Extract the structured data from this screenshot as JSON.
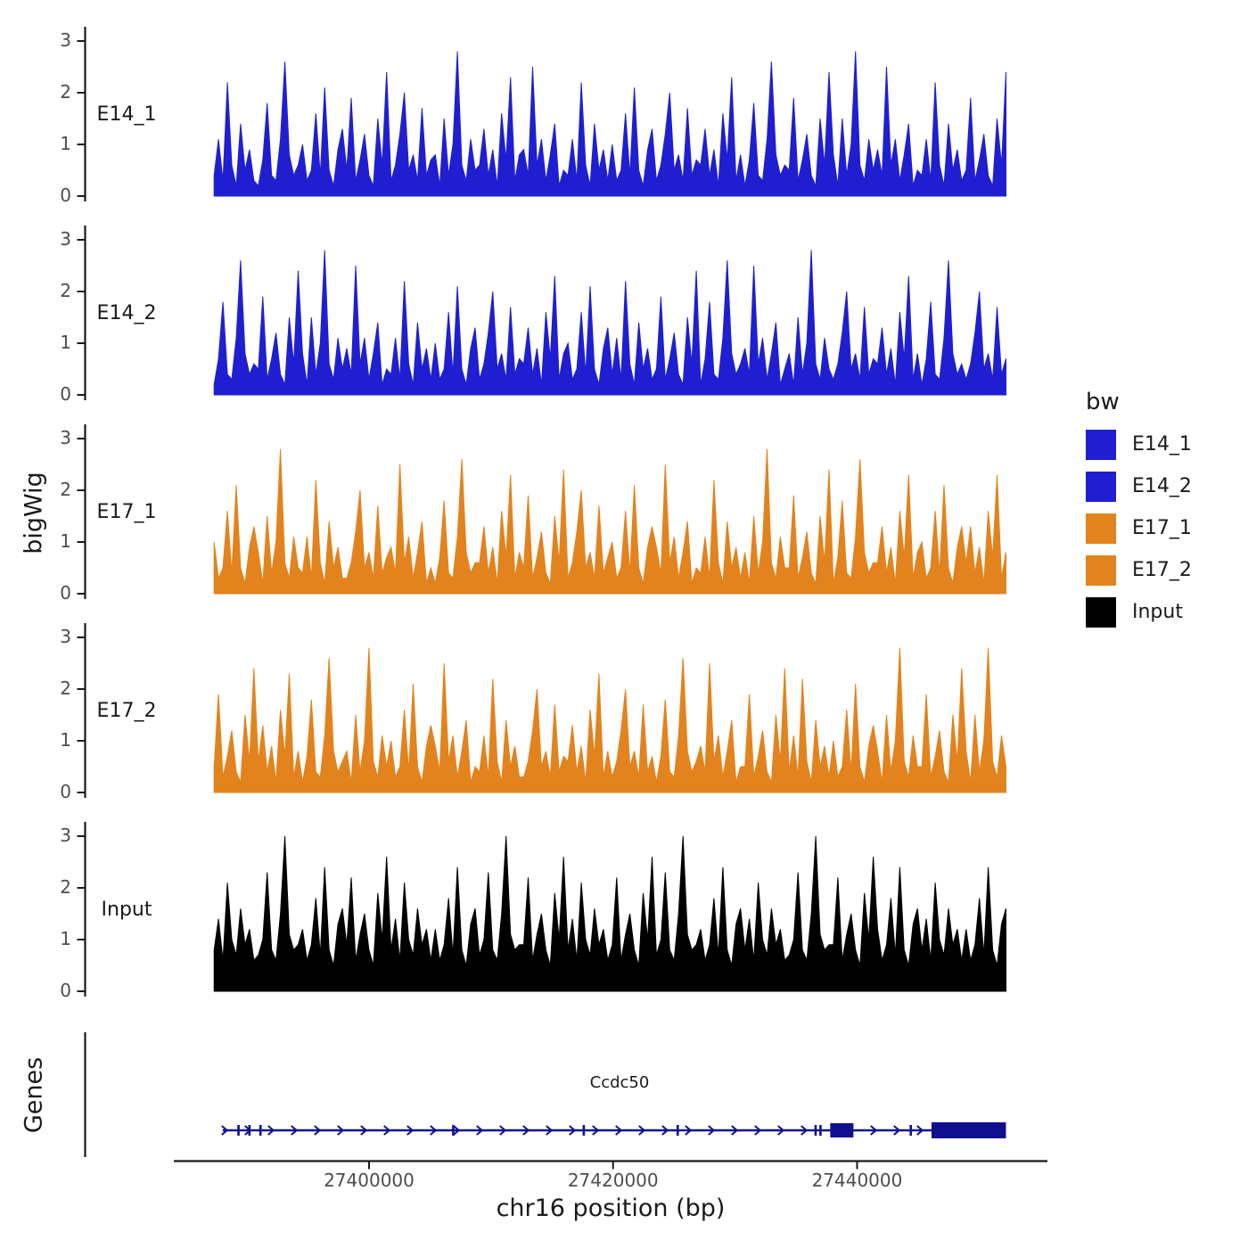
{
  "chart_data": {
    "type": "area",
    "title": "",
    "x_axis": {
      "label": "chr16 position (bp)",
      "domain": [
        27384000,
        27455600
      ],
      "ticks": [
        27400000,
        27420000,
        27440000
      ],
      "tick_labels": [
        "27400000",
        "27420000",
        "27440000"
      ]
    },
    "y_axis": {
      "label": "bigWig",
      "ticks": [
        0,
        1,
        2,
        3
      ],
      "range": [
        0,
        3.3
      ]
    },
    "data_start": 27387300,
    "data_end": 27452200,
    "tracks": [
      {
        "name": "E14_1",
        "color": "#1F1FD1",
        "values": [
          0.4,
          1.1,
          0.3,
          2.2,
          0.6,
          0.2,
          1.4,
          0.5,
          0.9,
          0.3,
          0.2,
          0.7,
          1.8,
          0.4,
          0.3,
          1.1,
          2.6,
          0.8,
          0.4,
          0.6,
          1.0,
          0.3,
          0.5,
          1.6,
          0.4,
          2.1,
          0.5,
          0.2,
          0.9,
          1.3,
          0.5,
          1.9,
          0.3,
          0.7,
          1.2,
          0.4,
          0.2,
          1.5,
          0.6,
          2.4,
          0.3,
          0.6,
          1.2,
          2.0,
          0.5,
          0.8,
          0.3,
          1.7,
          0.4,
          0.7,
          0.8,
          0.2,
          1.5,
          0.4,
          1.0,
          2.8,
          0.6,
          0.3,
          1.1,
          0.5,
          0.6,
          1.3,
          0.4,
          0.9,
          0.2,
          1.6,
          0.7,
          2.3,
          0.3,
          0.8,
          0.9,
          0.4,
          2.5,
          0.6,
          1.1,
          0.3,
          0.8,
          1.4,
          0.2,
          0.5,
          0.4,
          1.1,
          0.3,
          2.2,
          0.6,
          0.2,
          1.4,
          0.5,
          0.9,
          0.3,
          1.0,
          0.3,
          0.5,
          1.6,
          0.4,
          2.1,
          0.5,
          0.2,
          0.9,
          1.3,
          0.3,
          0.6,
          1.2,
          2.0,
          0.5,
          0.8,
          0.3,
          1.7,
          0.4,
          0.7,
          0.6,
          1.3,
          0.4,
          0.9,
          0.2,
          1.6,
          0.7,
          2.3,
          0.3,
          0.8,
          0.2,
          0.7,
          1.8,
          0.4,
          0.3,
          1.1,
          2.6,
          0.8,
          0.4,
          0.6,
          0.5,
          1.9,
          0.3,
          0.7,
          1.2,
          0.4,
          0.2,
          1.5,
          0.6,
          2.4,
          0.8,
          0.2,
          1.5,
          0.4,
          1.0,
          2.8,
          0.6,
          0.3,
          1.1,
          0.5,
          0.9,
          0.4,
          2.5,
          0.6,
          1.1,
          0.3,
          0.8,
          1.4,
          0.2,
          0.5,
          0.4,
          1.1,
          0.3,
          2.2,
          0.6,
          0.2,
          1.4,
          0.5,
          0.9,
          0.3,
          0.5,
          1.9,
          0.3,
          0.7,
          1.2,
          0.4,
          0.2,
          1.5,
          0.6,
          2.4
        ]
      },
      {
        "name": "E14_2",
        "color": "#1F1FD1",
        "values": [
          0.2,
          0.7,
          1.8,
          0.4,
          0.3,
          1.1,
          2.6,
          0.8,
          0.4,
          0.6,
          0.5,
          1.9,
          0.3,
          0.7,
          1.2,
          0.4,
          0.2,
          1.5,
          0.6,
          2.4,
          0.8,
          0.2,
          1.5,
          0.4,
          1.0,
          2.8,
          0.6,
          0.3,
          1.1,
          0.5,
          0.9,
          0.4,
          2.5,
          0.6,
          1.1,
          0.3,
          0.8,
          1.4,
          0.2,
          0.5,
          0.4,
          1.1,
          0.3,
          2.2,
          0.6,
          0.2,
          1.4,
          0.5,
          0.9,
          0.3,
          1.0,
          0.3,
          0.5,
          1.6,
          0.4,
          2.1,
          0.5,
          0.2,
          0.9,
          1.3,
          0.3,
          0.6,
          1.2,
          2.0,
          0.5,
          0.8,
          0.3,
          1.7,
          0.4,
          0.7,
          0.6,
          1.3,
          0.4,
          0.9,
          0.2,
          1.6,
          0.7,
          2.3,
          0.3,
          0.8,
          1.0,
          0.3,
          0.5,
          1.6,
          0.4,
          2.1,
          0.5,
          0.2,
          0.9,
          1.3,
          0.4,
          1.1,
          0.3,
          2.2,
          0.6,
          0.2,
          1.4,
          0.5,
          0.9,
          0.3,
          0.5,
          1.9,
          0.3,
          0.7,
          1.2,
          0.4,
          0.2,
          1.5,
          0.6,
          2.4,
          0.2,
          0.7,
          1.8,
          0.4,
          0.3,
          1.1,
          2.6,
          0.8,
          0.4,
          0.6,
          0.9,
          0.4,
          2.5,
          0.6,
          1.1,
          0.3,
          0.8,
          1.4,
          0.2,
          0.5,
          0.8,
          0.2,
          1.5,
          0.4,
          1.0,
          2.8,
          0.6,
          0.3,
          1.1,
          0.5,
          0.3,
          0.6,
          1.2,
          2.0,
          0.5,
          0.8,
          0.3,
          1.7,
          0.4,
          0.7,
          0.6,
          1.3,
          0.4,
          0.9,
          0.2,
          1.6,
          0.7,
          2.3,
          0.3,
          0.8,
          0.2,
          0.7,
          1.8,
          0.4,
          0.3,
          1.1,
          2.6,
          0.8,
          0.4,
          0.6,
          0.3,
          0.6,
          1.2,
          2.0,
          0.5,
          0.8,
          0.3,
          1.7,
          0.4,
          0.7
        ]
      },
      {
        "name": "E17_1",
        "color": "#E2831D",
        "values": [
          1.0,
          0.3,
          0.5,
          1.6,
          0.4,
          2.1,
          0.5,
          0.2,
          0.9,
          1.3,
          0.8,
          0.2,
          1.5,
          0.4,
          1.0,
          2.8,
          0.6,
          0.3,
          1.1,
          0.5,
          0.4,
          1.1,
          0.3,
          2.2,
          0.6,
          0.2,
          1.4,
          0.5,
          0.9,
          0.3,
          0.3,
          0.6,
          1.2,
          2.0,
          0.5,
          0.8,
          0.3,
          1.7,
          0.4,
          0.7,
          0.9,
          0.4,
          2.5,
          0.6,
          1.1,
          0.3,
          0.8,
          1.4,
          0.2,
          0.5,
          0.2,
          0.7,
          1.8,
          0.4,
          0.3,
          1.1,
          2.6,
          0.8,
          0.4,
          0.6,
          0.6,
          1.3,
          0.4,
          0.9,
          0.2,
          1.6,
          0.7,
          2.3,
          0.3,
          0.8,
          0.5,
          1.9,
          0.3,
          0.7,
          1.2,
          0.4,
          0.2,
          1.5,
          0.6,
          2.4,
          0.3,
          0.6,
          1.2,
          2.0,
          0.5,
          0.8,
          0.3,
          1.7,
          0.4,
          0.7,
          1.0,
          0.3,
          0.5,
          1.6,
          0.4,
          2.1,
          0.5,
          0.2,
          0.9,
          1.3,
          0.9,
          0.4,
          2.5,
          0.6,
          1.1,
          0.3,
          0.8,
          1.4,
          0.2,
          0.5,
          0.4,
          1.1,
          0.3,
          2.2,
          0.6,
          0.2,
          1.4,
          0.5,
          0.9,
          0.3,
          0.8,
          0.2,
          1.5,
          0.4,
          1.0,
          2.8,
          0.6,
          0.3,
          1.1,
          0.5,
          0.5,
          1.9,
          0.3,
          0.7,
          1.2,
          0.4,
          0.2,
          1.5,
          0.6,
          2.4,
          0.2,
          0.7,
          1.8,
          0.4,
          0.3,
          1.1,
          2.6,
          0.8,
          0.4,
          0.6,
          0.6,
          1.3,
          0.4,
          0.9,
          0.2,
          1.6,
          0.7,
          2.3,
          0.3,
          0.8,
          1.0,
          0.3,
          0.5,
          1.6,
          0.4,
          2.1,
          0.5,
          0.2,
          0.9,
          1.3,
          0.6,
          1.3,
          0.4,
          0.9,
          0.2,
          1.6,
          0.7,
          2.3,
          0.3,
          0.8
        ]
      },
      {
        "name": "E17_2",
        "color": "#E2831D",
        "values": [
          0.5,
          1.9,
          0.3,
          0.7,
          1.2,
          0.4,
          0.2,
          1.5,
          0.6,
          2.4,
          0.6,
          1.3,
          0.4,
          0.9,
          0.2,
          1.6,
          0.7,
          2.3,
          0.3,
          0.8,
          0.2,
          0.7,
          1.8,
          0.4,
          0.3,
          1.1,
          2.6,
          0.8,
          0.4,
          0.6,
          0.8,
          0.2,
          1.5,
          0.4,
          1.0,
          2.8,
          0.6,
          0.3,
          1.1,
          0.5,
          1.0,
          0.3,
          0.5,
          1.6,
          0.4,
          2.1,
          0.5,
          0.2,
          0.9,
          1.3,
          0.9,
          0.4,
          2.5,
          0.6,
          1.1,
          0.3,
          0.8,
          1.4,
          0.2,
          0.5,
          0.4,
          1.1,
          0.3,
          2.2,
          0.6,
          0.2,
          1.4,
          0.5,
          0.9,
          0.3,
          0.3,
          0.6,
          1.2,
          2.0,
          0.5,
          0.8,
          0.3,
          1.7,
          0.4,
          0.7,
          0.6,
          1.3,
          0.4,
          0.9,
          0.2,
          1.6,
          0.7,
          2.3,
          0.3,
          0.8,
          0.3,
          0.6,
          1.2,
          2.0,
          0.5,
          0.8,
          0.3,
          1.7,
          0.4,
          0.7,
          0.2,
          0.7,
          1.8,
          0.4,
          0.3,
          1.1,
          2.6,
          0.8,
          0.4,
          0.6,
          0.9,
          0.4,
          2.5,
          0.6,
          1.1,
          0.3,
          0.8,
          1.4,
          0.2,
          0.5,
          0.5,
          1.9,
          0.3,
          0.7,
          1.2,
          0.4,
          0.2,
          1.5,
          0.6,
          2.4,
          0.4,
          1.1,
          0.3,
          2.2,
          0.6,
          0.2,
          1.4,
          0.5,
          0.9,
          0.3,
          1.0,
          0.3,
          0.5,
          1.6,
          0.4,
          2.1,
          0.5,
          0.2,
          0.9,
          1.3,
          0.8,
          0.2,
          1.5,
          0.4,
          1.0,
          2.8,
          0.6,
          0.3,
          1.1,
          0.5,
          0.5,
          1.9,
          0.3,
          0.7,
          1.2,
          0.4,
          0.2,
          1.5,
          0.6,
          2.4,
          0.8,
          0.2,
          1.5,
          0.4,
          1.0,
          2.8,
          0.6,
          0.3,
          1.1,
          0.5
        ]
      },
      {
        "name": "Input",
        "color": "#000000",
        "values": [
          0.8,
          1.4,
          0.6,
          2.1,
          1.0,
          0.7,
          1.6,
          0.9,
          1.2,
          0.6,
          0.7,
          1.0,
          2.3,
          0.8,
          0.6,
          1.5,
          3.0,
          1.1,
          0.8,
          0.9,
          1.2,
          0.6,
          0.9,
          1.8,
          0.7,
          2.4,
          0.8,
          0.5,
          1.3,
          1.6,
          0.9,
          2.2,
          0.6,
          1.1,
          1.5,
          0.8,
          0.5,
          1.9,
          1.0,
          2.6,
          0.8,
          1.4,
          0.6,
          2.1,
          1.0,
          0.7,
          1.6,
          0.9,
          1.2,
          0.6,
          1.2,
          0.6,
          0.9,
          1.8,
          0.7,
          2.4,
          0.8,
          0.5,
          1.3,
          1.6,
          0.7,
          1.0,
          2.3,
          0.8,
          0.6,
          1.5,
          3.0,
          1.1,
          0.8,
          0.9,
          0.9,
          2.2,
          0.6,
          1.1,
          1.5,
          0.8,
          0.5,
          1.9,
          1.0,
          2.6,
          0.8,
          1.4,
          0.6,
          2.1,
          1.0,
          0.7,
          1.6,
          0.9,
          1.2,
          0.6,
          0.9,
          2.2,
          0.6,
          1.1,
          1.5,
          0.8,
          0.5,
          1.9,
          1.0,
          2.6,
          0.7,
          1.0,
          2.3,
          0.8,
          0.6,
          1.5,
          3.0,
          1.1,
          0.8,
          0.9,
          1.2,
          0.6,
          0.9,
          1.8,
          0.7,
          2.4,
          0.8,
          0.5,
          1.3,
          1.6,
          0.8,
          1.4,
          0.6,
          2.1,
          1.0,
          0.7,
          1.6,
          0.9,
          1.2,
          0.6,
          0.7,
          1.0,
          2.3,
          0.8,
          0.6,
          1.5,
          3.0,
          1.1,
          0.8,
          0.9,
          0.9,
          2.2,
          0.6,
          1.1,
          1.5,
          0.8,
          0.5,
          1.9,
          1.0,
          2.6,
          1.2,
          0.6,
          0.9,
          1.8,
          0.7,
          2.4,
          0.8,
          0.5,
          1.3,
          1.6,
          0.8,
          1.4,
          0.6,
          2.1,
          1.0,
          0.7,
          1.6,
          0.9,
          1.2,
          0.6,
          1.2,
          0.6,
          0.9,
          1.8,
          0.7,
          2.4,
          0.8,
          0.5,
          1.3,
          1.6
        ]
      }
    ],
    "legend": {
      "title": "bw",
      "entries": [
        {
          "label": "E14_1",
          "color": "#1F1FD1"
        },
        {
          "label": "E14_2",
          "color": "#1F1FD1"
        },
        {
          "label": "E17_1",
          "color": "#E2831D"
        },
        {
          "label": "E17_2",
          "color": "#E2831D"
        },
        {
          "label": "Input",
          "color": "#000000"
        }
      ]
    },
    "genes_panel": {
      "label": "Genes",
      "gene": {
        "name": "Ccdc50",
        "strand": "+",
        "start": 27388000,
        "end": 27452200,
        "color": "#10108E",
        "exon_ticks": [
          27389300,
          27390200,
          27391100,
          27406900,
          27417600,
          27425300,
          27436600,
          27437000,
          27444400
        ],
        "big_exons": [
          [
            27437800,
            27439700
          ],
          [
            27446100,
            27452200
          ]
        ]
      }
    }
  }
}
